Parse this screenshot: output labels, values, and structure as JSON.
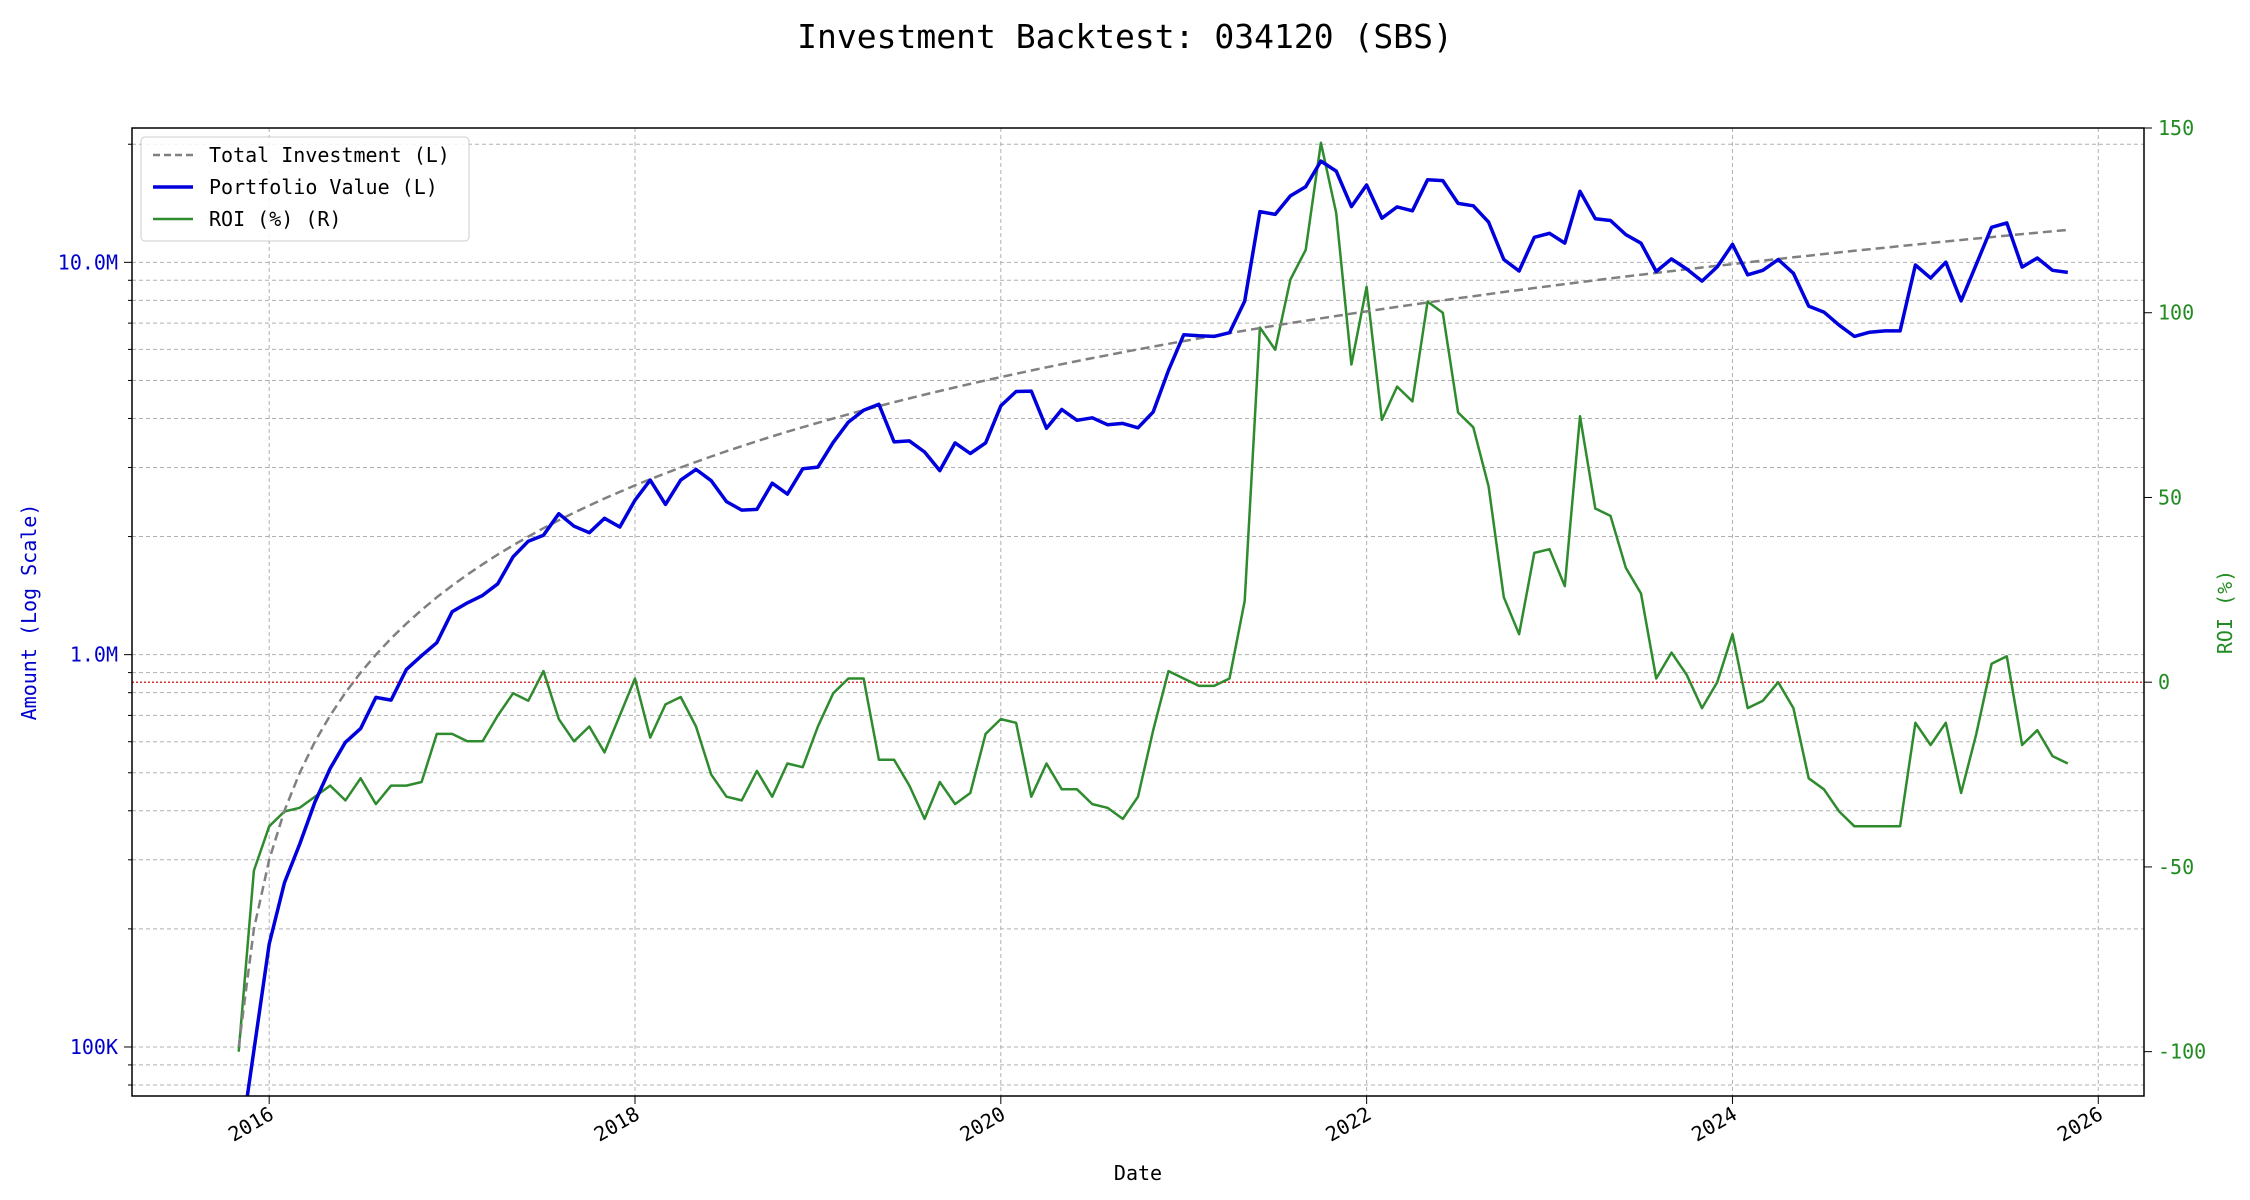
{
  "chart_data": {
    "type": "line",
    "title": "Investment Backtest: 034120 (SBS)",
    "xlabel": "Date",
    "ylabel_left": "Amount (Log Scale)",
    "ylabel_right": "ROI (%)",
    "x_ticks": [
      "2016",
      "2018",
      "2020",
      "2022",
      "2024",
      "2026"
    ],
    "y_left_ticks": [
      "100K",
      "1.0M",
      "10.0M"
    ],
    "y_right_ticks": [
      "-100",
      "-50",
      "0",
      "50",
      "100",
      "150"
    ],
    "y_left_scale": "log",
    "y_left_range": [
      75000,
      22000000
    ],
    "y_right_range": [
      -112,
      150
    ],
    "x_range": [
      "2015-04-01",
      "2026-04-01"
    ],
    "grid": true,
    "legend_position": "top-left",
    "zero_line": {
      "axis": "right",
      "value": 0,
      "color": "#e03030"
    },
    "colors": {
      "total_investment": "#808080",
      "portfolio": "#0000dd",
      "roi": "#2e8b2e"
    },
    "start_date": "2015-11-01",
    "series": [
      {
        "name": "Total Investment (L)",
        "axis": "left",
        "style": "dashed",
        "values": [
          100000,
          200000,
          300000,
          400000,
          500000,
          600000,
          700000,
          800000,
          900000,
          1000000,
          1100000,
          1200000,
          1300000,
          1400000,
          1500000,
          1600000,
          1700000,
          1800000,
          1900000,
          2000000,
          2100000,
          2200000,
          2300000,
          2400000,
          2500000,
          2600000,
          2700000,
          2800000,
          2900000,
          3000000,
          3100000,
          3200000,
          3300000,
          3400000,
          3500000,
          3600000,
          3700000,
          3800000,
          3900000,
          4000000,
          4100000,
          4200000,
          4300000,
          4400000,
          4500000,
          4600000,
          4700000,
          4800000,
          4900000,
          5000000,
          5100000,
          5200000,
          5300000,
          5400000,
          5500000,
          5600000,
          5700000,
          5800000,
          5900000,
          6000000,
          6100000,
          6200000,
          6300000,
          6400000,
          6500000,
          6600000,
          6700000,
          6800000,
          6900000,
          7000000,
          7100000,
          7200000,
          7300000,
          7400000,
          7500000,
          7600000,
          7700000,
          7800000,
          7900000,
          8000000,
          8100000,
          8200000,
          8300000,
          8400000,
          8500000,
          8600000,
          8700000,
          8800000,
          8900000,
          9000000,
          9100000,
          9200000,
          9300000,
          9400000,
          9500000,
          9600000,
          9700000,
          9800000,
          9900000,
          10000000,
          10100000,
          10200000,
          10300000,
          10400000,
          10500000,
          10600000,
          10700000,
          10800000,
          10900000,
          11000000,
          11100000,
          11200000,
          11300000,
          11400000,
          11500000,
          11600000,
          11700000,
          11800000,
          11900000,
          12000000,
          12100000
        ]
      },
      {
        "name": "Portfolio Value (L)",
        "axis": "left",
        "style": "solid",
        "values": [
          0,
          98000,
          183000,
          262000,
          329000,
          421000,
          513000,
          598000,
          648000,
          778000,
          766000,
          917000,
          994000,
          1073000,
          1286000,
          1355000,
          1416000,
          1516000,
          1776000,
          1946000,
          2016000,
          2287000,
          2125000,
          2046000,
          2226000,
          2116000,
          2476000,
          2786000,
          2416000,
          2786000,
          2966000,
          2776000,
          2456000,
          2336000,
          2346000,
          2736000,
          2566000,
          2976000,
          3006000,
          3476000,
          3916000,
          4196000,
          4346000,
          3486000,
          3506000,
          3286000,
          2946000,
          3466000,
          3256000,
          3466000,
          4306000,
          4686000,
          4696000,
          3776000,
          4216000,
          3956000,
          4016000,
          3856000,
          3886000,
          3786000,
          4156000,
          5306000,
          6536000,
          6496000,
          6476000,
          6616000,
          7966000,
          13466000,
          13246000,
          14766000,
          15586000,
          18116000,
          17086000,
          13866000,
          15746000,
          12956000,
          13846000,
          13536000,
          16246000,
          16156000,
          14136000,
          13936000,
          12666000,
          10166000,
          9506000,
          11586000,
          11856000,
          11196000,
          15176000,
          12916000,
          12786000,
          11766000,
          11186000,
          9476000,
          10206000,
          9616000,
          8956000,
          9736000,
          11116000,
          9296000,
          9546000,
          10166000,
          9376000,
          7736000,
          7466000,
          6916000,
          6476000,
          6636000,
          6686000,
          6686000,
          9846000,
          9116000,
          10006000,
          7976000,
          9886000,
          12286000,
          12606000,
          9726000,
          10256000,
          9546000,
          9426000
        ]
      },
      {
        "name": "ROI (%) (R)",
        "axis": "right",
        "style": "solid",
        "values": [
          -100,
          -51,
          -39,
          -35,
          -34,
          -31,
          -28,
          -32,
          -26,
          -33,
          -28,
          -28,
          -27,
          -14,
          -14,
          -16,
          -16,
          -9,
          -3,
          -5,
          3,
          -10,
          -16,
          -12,
          -19,
          -9,
          1,
          -15,
          -6,
          -4,
          -12,
          -25,
          -31,
          -32,
          -24,
          -31,
          -22,
          -23,
          -12,
          -3,
          1,
          1,
          -21,
          -21,
          -28,
          -37,
          -27,
          -33,
          -30,
          -14,
          -10,
          -11,
          -31,
          -22,
          -29,
          -29,
          -33,
          -34,
          -37,
          -31,
          -13,
          3,
          1,
          -1,
          -1,
          1,
          22,
          96,
          90,
          109,
          117,
          146,
          127,
          86,
          107,
          71,
          80,
          76,
          103,
          100,
          73,
          69,
          53,
          23,
          13,
          35,
          36,
          26,
          72,
          47,
          45,
          31,
          24,
          1,
          8,
          2,
          -7,
          0,
          13,
          -7,
          -5,
          0,
          -7,
          -26,
          -29,
          -35,
          -39,
          -39,
          -39,
          -39,
          -11,
          -17,
          -11,
          -30,
          -14,
          5,
          7,
          -17,
          -13,
          -20,
          -22
        ]
      }
    ]
  }
}
